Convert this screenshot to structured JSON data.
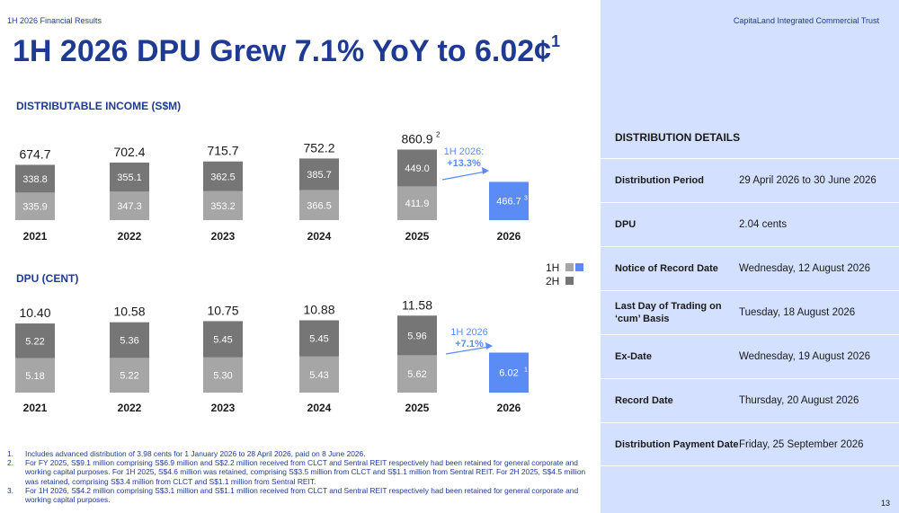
{
  "header": {
    "doc_label": "1H 2026 Financial Results",
    "trust_name": "CapitaLand Integrated Commercial Trust",
    "title": "1H 2026 DPU Grew 7.1% YoY to 6.02¢",
    "title_note": "1",
    "page_number": "13"
  },
  "colors": {
    "title_blue": "#1f3a93",
    "bar_1h": "#a6a6a6",
    "bar_2h": "#767676",
    "bar_current": "#5b8cf5",
    "panel_bg": "#d3e0ff"
  },
  "legend": {
    "items": [
      {
        "label": "1H",
        "color": "#5b8cf5"
      },
      {
        "label": "2H",
        "color": "#767676"
      }
    ]
  },
  "chart_data": [
    {
      "type": "bar",
      "title": "DISTRIBUTABLE INCOME (S$M)",
      "stacked": true,
      "categories": [
        "2021",
        "2022",
        "2023",
        "2024",
        "2025",
        "2026"
      ],
      "series": [
        {
          "name": "1H",
          "values": [
            335.9,
            347.3,
            353.2,
            366.5,
            411.9,
            466.7
          ]
        },
        {
          "name": "2H",
          "values": [
            338.8,
            355.1,
            362.5,
            385.7,
            449.0,
            null
          ]
        }
      ],
      "totals": [
        "674.7",
        "702.4",
        "715.7",
        "752.2",
        "860.9",
        ""
      ],
      "total_notes": [
        "",
        "",
        "",
        "",
        "2",
        ""
      ],
      "value_labels_1h": [
        "335.9",
        "347.3",
        "353.2",
        "366.5",
        "411.9",
        "466.7"
      ],
      "value_labels_2h": [
        "338.8",
        "355.1",
        "362.5",
        "385.7",
        "449.0",
        ""
      ],
      "value_notes_1h": [
        "",
        "",
        "",
        "",
        "",
        "3"
      ],
      "growth_annotation": {
        "line1": "1H 2026:",
        "line2": "+13.3%"
      }
    },
    {
      "type": "bar",
      "title": "DPU (CENT)",
      "stacked": true,
      "categories": [
        "2021",
        "2022",
        "2023",
        "2024",
        "2025",
        "2026"
      ],
      "series": [
        {
          "name": "1H",
          "values": [
            5.18,
            5.22,
            5.3,
            5.43,
            5.62,
            6.02
          ]
        },
        {
          "name": "2H",
          "values": [
            5.22,
            5.36,
            5.45,
            5.45,
            5.96,
            null
          ]
        }
      ],
      "totals": [
        "10.40",
        "10.58",
        "10.75",
        "10.88",
        "11.58",
        ""
      ],
      "total_notes": [
        "",
        "",
        "",
        "",
        "",
        ""
      ],
      "value_labels_1h": [
        "5.18",
        "5.22",
        "5.30",
        "5.43",
        "5.62",
        "6.02"
      ],
      "value_labels_2h": [
        "5.22",
        "5.36",
        "5.45",
        "5.45",
        "5.96",
        ""
      ],
      "value_notes_1h": [
        "",
        "",
        "",
        "",
        "",
        "1"
      ],
      "growth_annotation": {
        "line1": "1H 2026",
        "line2": "+7.1%"
      }
    }
  ],
  "distribution": {
    "title": "DISTRIBUTION DETAILS",
    "rows": [
      {
        "label": "Distribution Period",
        "value": "29 April 2026 to 30 June 2026"
      },
      {
        "label": "DPU",
        "value": "2.04 cents"
      },
      {
        "label": "Notice of Record Date",
        "value": "Wednesday, 12 August 2026"
      },
      {
        "label": "Last Day of Trading on ‘cum’ Basis",
        "value": "Tuesday, 18 August 2026"
      },
      {
        "label": "Ex-Date",
        "value": "Wednesday, 19 August 2026"
      },
      {
        "label": "Record Date",
        "value": "Thursday, 20 August 2026"
      },
      {
        "label": "Distribution Payment Date",
        "value": "Friday, 25 September 2026"
      }
    ]
  },
  "footnotes": [
    {
      "num": "1.",
      "text": "Includes advanced distribution of 3.98 cents for 1 January 2026 to 28 April 2026, paid on 8 June 2026."
    },
    {
      "num": "2.",
      "text": "For FY 2025, S$9.1 million comprising S$6.9 million and S$2.2 million received from CLCT and Sentral REIT respectively had been retained for general corporate and working capital purposes. For 1H 2025, S$4.6 million was retained, comprising S$3.5 million from CLCT and S$1.1 million from Sentral REIT. For 2H 2025, S$4.5 million was retained, comprising S$3.4 million from CLCT and S$1.1 million from Sentral REIT."
    },
    {
      "num": "3.",
      "text": "For 1H 2026, S$4.2 million comprising S$3.1 million and S$1.1 million received from CLCT and Sentral REIT respectively had been retained for general corporate and working capital purposes."
    }
  ]
}
